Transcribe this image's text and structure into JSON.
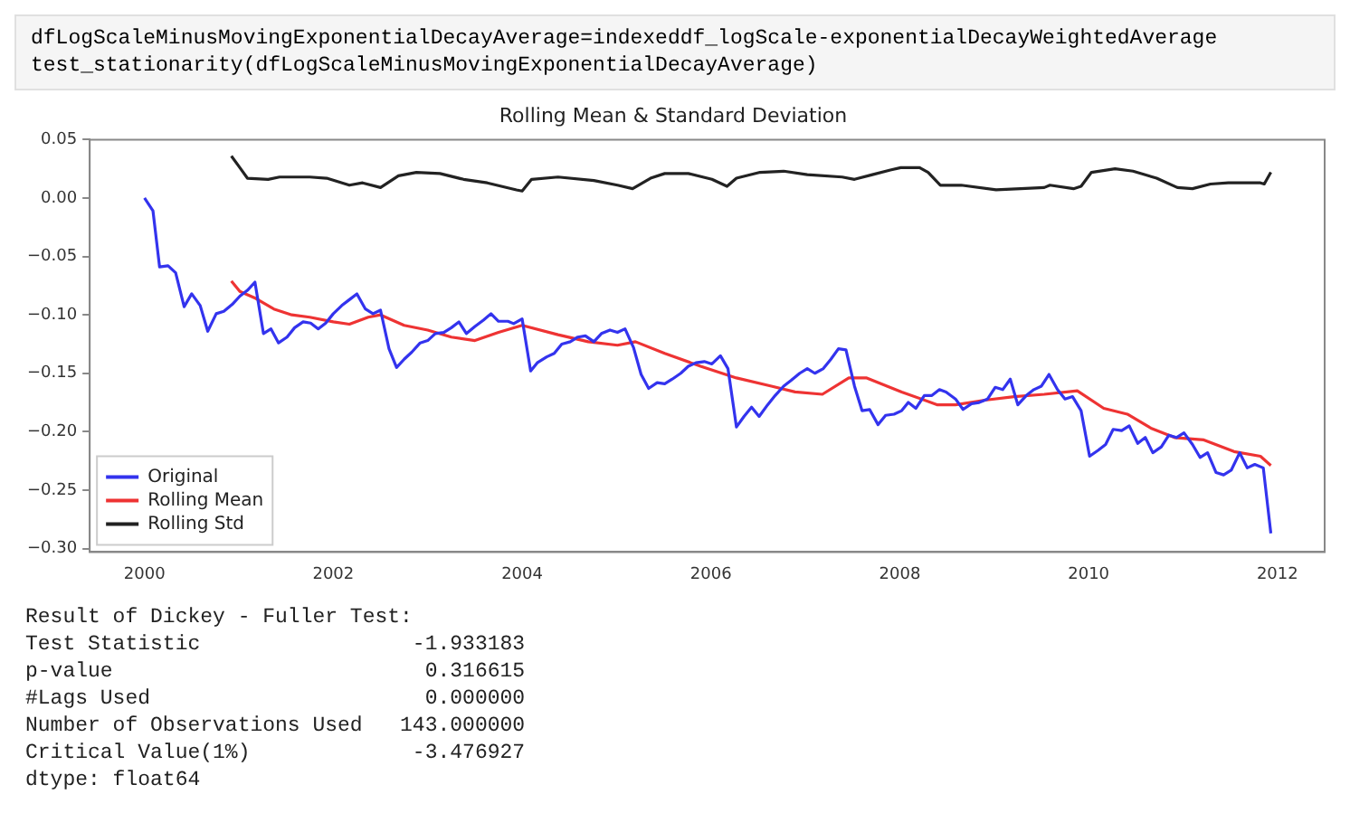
{
  "chart_data": {
    "type": "line",
    "title": "Rolling Mean & Standard Deviation",
    "annotations": [
      "dfLogScaleMinusMovingExponentialDecayAverage=indexeddf_logScale-exponentialDecayWeightedAverage",
      "test_stationarity(dfLogScaleMinusMovingExponentialDecayAverage)",
      "Result of Dickey - Fuller Test:",
      "Test Statistic                 -1.933183",
      "p-value                         0.316615",
      "#Lags Used                      0.000000",
      "Number of Observations Used   143.000000",
      "Critical Value(1%)             -3.476927",
      "dtype: float64"
    ],
    "xlim": [
      1999.42,
      2012.5
    ],
    "xticks": [
      2000,
      2002,
      2004,
      2006,
      2008,
      2010,
      2012
    ],
    "ylim": [
      -0.303,
      0.05
    ],
    "yticks": [
      {
        "value": 0.05,
        "label": "0.05"
      },
      {
        "value": 0,
        "label": "0.00"
      },
      {
        "value": -0.05,
        "label": "−0.05"
      },
      {
        "value": -0.1,
        "label": "−0.10"
      },
      {
        "value": -0.15,
        "label": "−0.15"
      },
      {
        "value": -0.2,
        "label": "−0.20"
      },
      {
        "value": -0.25,
        "label": "−0.25"
      },
      {
        "value": -0.3,
        "label": "−0.30"
      }
    ],
    "grid": false,
    "legend": "bottom left",
    "marker": "none",
    "line_style": "solid",
    "series": [
      {
        "name": "Original",
        "color": "#3333ee",
        "x": [
          2000.0,
          2000.09,
          2000.16,
          2000.25,
          2000.33,
          2000.42,
          2000.5,
          2000.59,
          2000.67,
          2000.76,
          2000.84,
          2000.93,
          2001.01,
          2001.09,
          2001.17,
          2001.26,
          2001.34,
          2001.42,
          2001.51,
          2001.59,
          2001.68,
          2001.76,
          2001.84,
          2001.92,
          2002.0,
          2002.09,
          2002.17,
          2002.25,
          2002.34,
          2002.42,
          2002.5,
          2002.59,
          2002.67,
          2002.75,
          2002.83,
          2002.92,
          2003.0,
          2003.08,
          2003.17,
          2003.25,
          2003.33,
          2003.41,
          2003.5,
          2003.59,
          2003.67,
          2003.75,
          2003.85,
          2003.91,
          2004.0,
          2004.09,
          2004.16,
          2004.26,
          2004.34,
          2004.42,
          2004.51,
          2004.59,
          2004.67,
          2004.76,
          2004.84,
          2004.93,
          2005.01,
          2005.09,
          2005.18,
          2005.26,
          2005.34,
          2005.43,
          2005.51,
          2005.59,
          2005.68,
          2005.76,
          2005.84,
          2005.93,
          2006.01,
          2006.1,
          2006.18,
          2006.27,
          2006.35,
          2006.43,
          2006.51,
          2006.6,
          2006.68,
          2006.77,
          2006.85,
          2006.94,
          2007.02,
          2007.1,
          2007.19,
          2007.27,
          2007.35,
          2007.43,
          2007.52,
          2007.6,
          2007.68,
          2007.77,
          2007.85,
          2007.94,
          2008.02,
          2008.09,
          2008.17,
          2008.26,
          2008.34,
          2008.42,
          2008.49,
          2008.59,
          2008.67,
          2008.76,
          2008.84,
          2008.93,
          2009.01,
          2009.09,
          2009.17,
          2009.25,
          2009.34,
          2009.42,
          2009.5,
          2009.58,
          2009.67,
          2009.75,
          2009.83,
          2009.92,
          2010.01,
          2010.1,
          2010.18,
          2010.26,
          2010.35,
          2010.43,
          2010.52,
          2010.6,
          2010.68,
          2010.77,
          2010.85,
          2010.93,
          2011.01,
          2011.1,
          2011.18,
          2011.26,
          2011.35,
          2011.43,
          2011.51,
          2011.6,
          2011.68,
          2011.76,
          2011.85,
          2011.93
        ],
        "values": [
          0.0,
          -0.011,
          -0.059,
          -0.058,
          -0.064,
          -0.093,
          -0.082,
          -0.092,
          -0.114,
          -0.099,
          -0.097,
          -0.091,
          -0.084,
          -0.079,
          -0.072,
          -0.116,
          -0.112,
          -0.124,
          -0.119,
          -0.111,
          -0.106,
          -0.107,
          -0.112,
          -0.107,
          -0.099,
          -0.092,
          -0.087,
          -0.082,
          -0.095,
          -0.099,
          -0.096,
          -0.129,
          -0.145,
          -0.138,
          -0.132,
          -0.124,
          -0.122,
          -0.116,
          -0.115,
          -0.111,
          -0.106,
          -0.116,
          -0.11,
          -0.1045,
          -0.099,
          -0.1055,
          -0.1055,
          -0.1075,
          -0.1035,
          -0.148,
          -0.141,
          -0.136,
          -0.133,
          -0.125,
          -0.123,
          -0.119,
          -0.118,
          -0.123,
          -0.116,
          -0.113,
          -0.115,
          -0.112,
          -0.128,
          -0.151,
          -0.163,
          -0.158,
          -0.159,
          -0.155,
          -0.15,
          -0.144,
          -0.141,
          -0.14,
          -0.142,
          -0.135,
          -0.146,
          -0.196,
          -0.187,
          -0.179,
          -0.187,
          -0.177,
          -0.169,
          -0.161,
          -0.156,
          -0.15,
          -0.146,
          -0.15,
          -0.146,
          -0.138,
          -0.129,
          -0.13,
          -0.161,
          -0.182,
          -0.181,
          -0.194,
          -0.186,
          -0.185,
          -0.182,
          -0.175,
          -0.18,
          -0.169,
          -0.169,
          -0.164,
          -0.166,
          -0.172,
          -0.181,
          -0.176,
          -0.175,
          -0.172,
          -0.162,
          -0.164,
          -0.155,
          -0.177,
          -0.169,
          -0.164,
          -0.161,
          -0.151,
          -0.164,
          -0.172,
          -0.17,
          -0.182,
          -0.221,
          -0.216,
          -0.211,
          -0.198,
          -0.199,
          -0.195,
          -0.21,
          -0.205,
          -0.218,
          -0.213,
          -0.203,
          -0.205,
          -0.201,
          -0.211,
          -0.222,
          -0.218,
          -0.235,
          -0.237,
          -0.233,
          -0.218,
          -0.231,
          -0.228,
          -0.231,
          -0.287
        ]
      },
      {
        "name": "Rolling Mean",
        "color": "#ee3333",
        "x": [
          2000.92,
          2001.01,
          2001.18,
          2001.37,
          2001.56,
          2001.75,
          2002.0,
          2002.17,
          2002.37,
          2002.5,
          2002.75,
          2003.0,
          2003.25,
          2003.5,
          2003.75,
          2004.0,
          2004.38,
          2004.7,
          2005.01,
          2005.2,
          2005.51,
          2005.89,
          2006.27,
          2006.64,
          2006.89,
          2007.18,
          2007.46,
          2007.65,
          2008.02,
          2008.4,
          2008.59,
          2008.9,
          2009.21,
          2009.53,
          2009.88,
          2010.16,
          2010.41,
          2010.66,
          2010.91,
          2011.22,
          2011.54,
          2011.82,
          2011.93
        ],
        "values": [
          -0.071,
          -0.08,
          -0.086,
          -0.095,
          -0.1,
          -0.102,
          -0.106,
          -0.108,
          -0.102,
          -0.1,
          -0.109,
          -0.113,
          -0.119,
          -0.122,
          -0.115,
          -0.109,
          -0.117,
          -0.123,
          -0.126,
          -0.123,
          -0.133,
          -0.144,
          -0.154,
          -0.161,
          -0.166,
          -0.168,
          -0.154,
          -0.154,
          -0.166,
          -0.177,
          -0.177,
          -0.173,
          -0.17,
          -0.168,
          -0.165,
          -0.18,
          -0.185,
          -0.197,
          -0.205,
          -0.207,
          -0.217,
          -0.221,
          -0.229
        ]
      },
      {
        "name": "Rolling Std",
        "color": "#222222",
        "x": [
          2000.92,
          2001.01,
          2001.09,
          2001.31,
          2001.43,
          2001.75,
          2001.93,
          2002.17,
          2002.31,
          2002.5,
          2002.69,
          2002.88,
          2003.13,
          2003.38,
          2003.63,
          2003.94,
          2004.0,
          2004.1,
          2004.38,
          2004.76,
          2005.01,
          2005.17,
          2005.36,
          2005.51,
          2005.76,
          2006.01,
          2006.17,
          2006.27,
          2006.52,
          2006.77,
          2007.02,
          2007.39,
          2007.52,
          2007.71,
          2007.9,
          2008.01,
          2008.21,
          2008.3,
          2008.43,
          2008.65,
          2009.02,
          2009.28,
          2009.53,
          2009.59,
          2009.84,
          2009.92,
          2010.03,
          2010.28,
          2010.47,
          2010.72,
          2010.94,
          2011.1,
          2011.29,
          2011.48,
          2011.82,
          2011.86,
          2011.93
        ],
        "values": [
          0.036,
          0.026,
          0.017,
          0.016,
          0.018,
          0.018,
          0.017,
          0.011,
          0.013,
          0.009,
          0.019,
          0.022,
          0.021,
          0.016,
          0.013,
          0.007,
          0.006,
          0.016,
          0.018,
          0.015,
          0.011,
          0.008,
          0.017,
          0.021,
          0.021,
          0.016,
          0.01,
          0.017,
          0.022,
          0.023,
          0.02,
          0.018,
          0.016,
          0.02,
          0.024,
          0.026,
          0.026,
          0.022,
          0.011,
          0.011,
          0.007,
          0.008,
          0.009,
          0.011,
          0.008,
          0.01,
          0.022,
          0.025,
          0.023,
          0.017,
          0.009,
          0.008,
          0.012,
          0.013,
          0.013,
          0.012,
          0.022
        ]
      }
    ]
  }
}
